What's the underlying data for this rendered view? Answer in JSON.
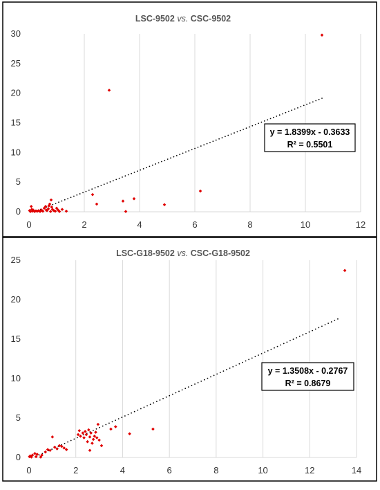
{
  "chart_data": [
    {
      "type": "scatter",
      "title_parts": [
        "LSC-9502 ",
        "vs.",
        " CSC-9502"
      ],
      "xlabel": "",
      "ylabel": "",
      "xlim": [
        0,
        12
      ],
      "ylim": [
        0,
        30
      ],
      "xticks": [
        "0",
        "2",
        "4",
        "6",
        "8",
        "10",
        "12"
      ],
      "yticks": [
        "0",
        "5",
        "10",
        "15",
        "20",
        "25",
        "30"
      ],
      "grid": "vertical",
      "marker_color": "#e00000",
      "trendline": {
        "slope": 1.8399,
        "intercept": -0.3633,
        "x_range": [
          0.2,
          10.6
        ],
        "style": "dotted",
        "color": "#000000"
      },
      "equation_lines": [
        "y = 1.8399x - 0.3633",
        "R² = 0.5501"
      ],
      "points": [
        [
          0.02,
          0.2
        ],
        [
          0.05,
          0.05
        ],
        [
          0.08,
          0.9
        ],
        [
          0.1,
          0.4
        ],
        [
          0.12,
          0.1
        ],
        [
          0.15,
          0.3
        ],
        [
          0.2,
          0.05
        ],
        [
          0.25,
          0.15
        ],
        [
          0.3,
          0.1
        ],
        [
          0.35,
          0.2
        ],
        [
          0.4,
          0.05
        ],
        [
          0.45,
          0.3
        ],
        [
          0.5,
          0.1
        ],
        [
          0.55,
          0.6
        ],
        [
          0.6,
          0.9
        ],
        [
          0.62,
          0.3
        ],
        [
          0.65,
          0.2
        ],
        [
          0.7,
          0.5
        ],
        [
          0.72,
          1.0
        ],
        [
          0.75,
          1.3
        ],
        [
          0.78,
          0.05
        ],
        [
          0.8,
          2.0
        ],
        [
          0.82,
          0.8
        ],
        [
          0.85,
          0.4
        ],
        [
          0.9,
          0.2
        ],
        [
          0.95,
          0.1
        ],
        [
          1.0,
          0.6
        ],
        [
          1.05,
          0.3
        ],
        [
          1.1,
          0.05
        ],
        [
          1.2,
          0.4
        ],
        [
          1.35,
          0.1
        ],
        [
          2.3,
          2.9
        ],
        [
          2.45,
          1.3
        ],
        [
          2.9,
          20.5
        ],
        [
          3.4,
          1.8
        ],
        [
          3.5,
          0.05
        ],
        [
          3.8,
          2.2
        ],
        [
          4.9,
          1.2
        ],
        [
          6.2,
          3.5
        ],
        [
          10.6,
          29.8
        ]
      ]
    },
    {
      "type": "scatter",
      "title_parts": [
        "LSC-G18-9502 ",
        "vs.",
        " CSC-G18-9502"
      ],
      "xlabel": "",
      "ylabel": "",
      "xlim": [
        0,
        14
      ],
      "ylim": [
        0,
        25
      ],
      "xticks": [
        "0",
        "2",
        "4",
        "6",
        "8",
        "10",
        "12",
        "14"
      ],
      "yticks": [
        "0",
        "5",
        "10",
        "15",
        "20",
        "25"
      ],
      "grid": "vertical",
      "marker_color": "#e00000",
      "trendline": {
        "slope": 1.3508,
        "intercept": -0.2767,
        "x_range": [
          0.3,
          13.2
        ],
        "style": "dotted",
        "color": "#000000"
      },
      "equation_lines": [
        "y = 1.3508x - 0.2767",
        "R² = 0.8679"
      ],
      "points": [
        [
          0.02,
          0.1
        ],
        [
          0.05,
          0.2
        ],
        [
          0.1,
          0.05
        ],
        [
          0.15,
          0.3
        ],
        [
          0.25,
          0.5
        ],
        [
          0.3,
          0.1
        ],
        [
          0.35,
          0.4
        ],
        [
          0.5,
          0.05
        ],
        [
          0.55,
          0.3
        ],
        [
          0.7,
          0.7
        ],
        [
          0.8,
          1.0
        ],
        [
          0.9,
          0.9
        ],
        [
          1.0,
          2.6
        ],
        [
          1.1,
          1.3
        ],
        [
          1.2,
          1.1
        ],
        [
          1.3,
          1.5
        ],
        [
          1.4,
          1.4
        ],
        [
          1.5,
          1.2
        ],
        [
          1.6,
          1.0
        ],
        [
          2.1,
          2.9
        ],
        [
          2.15,
          3.4
        ],
        [
          2.2,
          2.7
        ],
        [
          2.3,
          3.1
        ],
        [
          2.35,
          2.5
        ],
        [
          2.4,
          3.3
        ],
        [
          2.45,
          2.9
        ],
        [
          2.5,
          2.0
        ],
        [
          2.55,
          3.5
        ],
        [
          2.6,
          2.6
        ],
        [
          2.65,
          3.1
        ],
        [
          2.7,
          1.8
        ],
        [
          2.75,
          2.3
        ],
        [
          2.8,
          2.7
        ],
        [
          2.85,
          3.2
        ],
        [
          2.9,
          2.5
        ],
        [
          2.95,
          4.2
        ],
        [
          3.0,
          2.2
        ],
        [
          2.6,
          0.9
        ],
        [
          3.1,
          1.5
        ],
        [
          3.5,
          3.6
        ],
        [
          3.7,
          3.9
        ],
        [
          4.3,
          3.0
        ],
        [
          5.3,
          3.6
        ],
        [
          13.5,
          23.7
        ]
      ]
    }
  ]
}
